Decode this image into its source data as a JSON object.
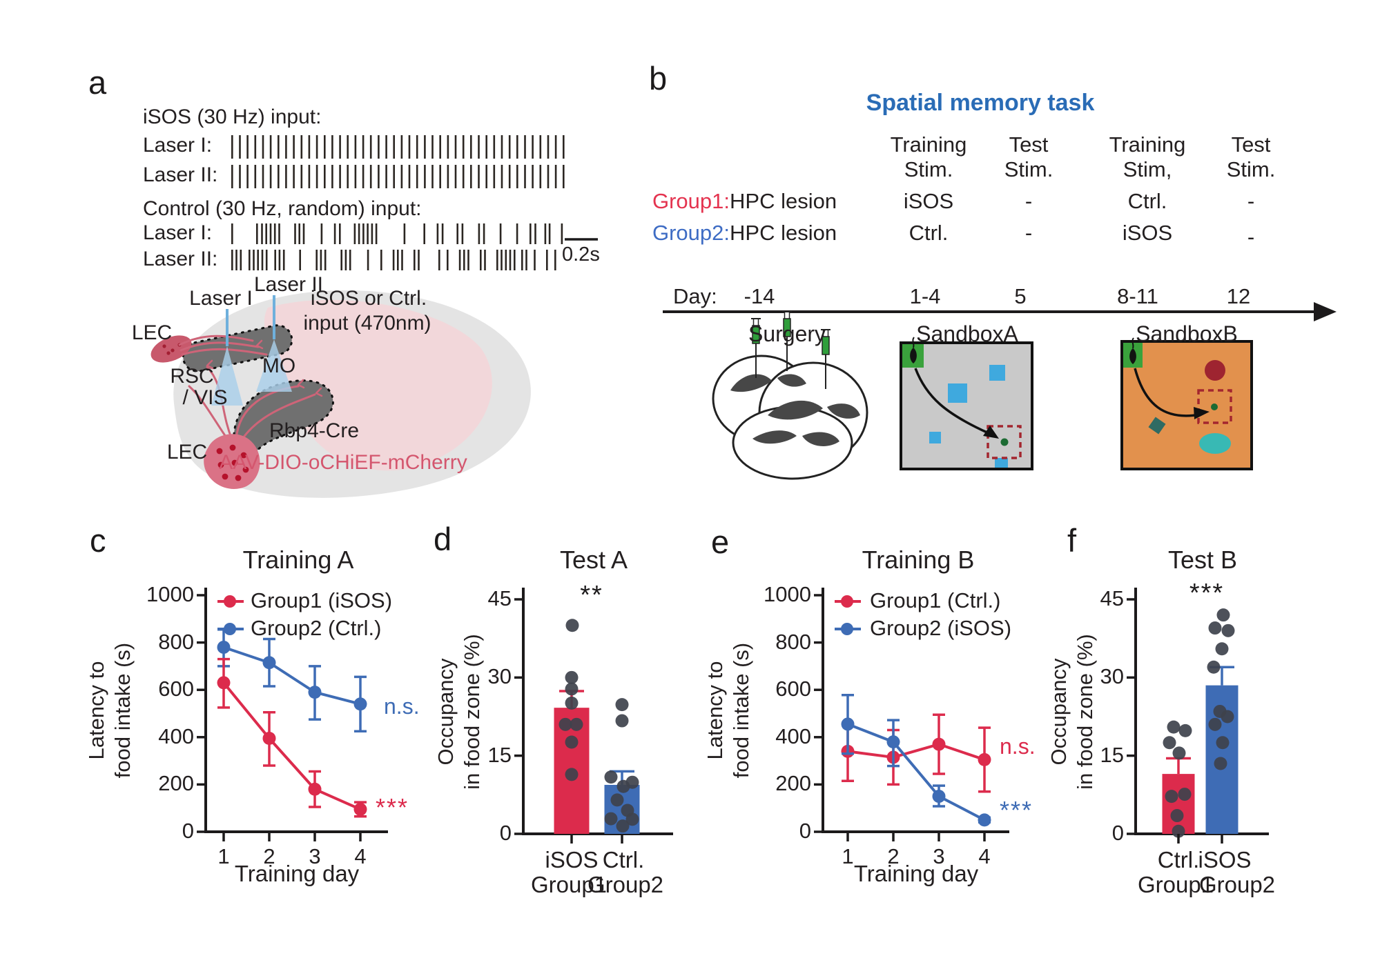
{
  "panel_a": {
    "letter": "a",
    "isos_input_label": "iSOS (30 Hz) input:",
    "control_input_label": "Control (30 Hz, random) input:",
    "laser1_label": "Laser I:",
    "laser2_label": "Laser II:",
    "scalebar_label": "0.2s",
    "isos_pulse_count": 44,
    "control_pulse_pattern_laser1": [
      0.0,
      0.075,
      0.09,
      0.103,
      0.116,
      0.129,
      0.142,
      0.19,
      0.203,
      0.216,
      0.27,
      0.31,
      0.325,
      0.37,
      0.383,
      0.396,
      0.409,
      0.422,
      0.435,
      0.52,
      0.58,
      0.62,
      0.635,
      0.68,
      0.695,
      0.745,
      0.76,
      0.81,
      0.86,
      0.9,
      0.915,
      0.945,
      0.958,
      0.995
    ],
    "control_pulse_pattern_laser2": [
      0.0,
      0.013,
      0.026,
      0.052,
      0.065,
      0.078,
      0.091,
      0.104,
      0.13,
      0.143,
      0.156,
      0.205,
      0.255,
      0.268,
      0.281,
      0.33,
      0.343,
      0.356,
      0.41,
      0.45,
      0.487,
      0.5,
      0.513,
      0.55,
      0.563,
      0.625,
      0.65,
      0.687,
      0.7,
      0.713,
      0.75,
      0.763,
      0.8,
      0.813,
      0.826,
      0.839,
      0.852,
      0.875,
      0.888,
      0.913,
      0.95,
      0.975
    ],
    "schematic_labels": {
      "laser1": "Laser I",
      "laser2": "Laser II",
      "input_line1": "iSOS or Ctrl.",
      "input_line2": "input (470nm)",
      "lec_top": "LEC",
      "rsc": "RSC",
      "vis": "/ VIS",
      "mo": "MO",
      "lec_bottom": "LEC",
      "mouse_line": "Rbp4-Cre",
      "virus": "AAV-DIO-oCHiEF-mCherry",
      "virus_color": "#D4566E"
    }
  },
  "panel_b": {
    "letter": "b",
    "title": "Spatial memory task",
    "title_color": "#2A6CB6",
    "col_headers": [
      [
        "Training",
        "Stim."
      ],
      [
        "Test",
        "Stim."
      ],
      [
        "Training",
        "Stim,"
      ],
      [
        "Test",
        "Stim."
      ]
    ],
    "rows": [
      {
        "group": "Group1:",
        "group_color": "#E4334F",
        "condition": "HPC lesion",
        "cells": [
          "iSOS",
          "-",
          "Ctrl.",
          "-"
        ]
      },
      {
        "group": "Group2:",
        "group_color": "#3E6CC4",
        "condition": "HPC lesion",
        "cells": [
          "Ctrl.",
          "-",
          "iSOS",
          "-"
        ]
      }
    ],
    "day_label": "Day:",
    "days": [
      "-14",
      "1-4",
      "5",
      "8-11",
      "12"
    ],
    "stages": [
      "Surgery",
      "SandboxA",
      "SandboxB"
    ],
    "sandboxA_colors": {
      "floor": "#C9C9C9",
      "start": "#3AA23C",
      "cue": "#3FA9DE",
      "food_zone": "#A3262F",
      "food": "#1C6B33"
    },
    "sandboxB_colors": {
      "floor": "#E2914D",
      "start": "#3AA23C",
      "cue_circle": "#9E2430",
      "cue_diamond": "#2F6B63",
      "cue_ellipse": "#38B9B4",
      "food_zone": "#A3262F",
      "food": "#1C6B33"
    }
  },
  "chart_data": [
    {
      "id": "c",
      "panel_letter": "c",
      "type": "line",
      "title": "Training A",
      "xlabel": "Training day",
      "ylabel_lines": [
        "Latency to",
        "food intake (s)"
      ],
      "x": [
        1,
        2,
        3,
        4
      ],
      "ylim": [
        0,
        1000
      ],
      "yticks": [
        0,
        200,
        400,
        600,
        800,
        1000
      ],
      "legend_position": "top-left-inside",
      "series": [
        {
          "name": "Group1 (iSOS)",
          "color": "#DC2B4C",
          "values": [
            630,
            395,
            180,
            95
          ],
          "err_low": [
            525,
            280,
            105,
            65
          ],
          "err_high": [
            730,
            505,
            255,
            125
          ],
          "sig": "***"
        },
        {
          "name": "Group2 (Ctrl.)",
          "color": "#3E6CB5",
          "values": [
            780,
            715,
            590,
            540
          ],
          "err_low": [
            700,
            615,
            475,
            425
          ],
          "err_high": [
            855,
            815,
            700,
            655
          ],
          "sig": "n.s."
        }
      ]
    },
    {
      "id": "d",
      "panel_letter": "d",
      "type": "bar",
      "title": "Test A",
      "ylabel_lines": [
        "Occupancy",
        "in food zone (%)"
      ],
      "ylim": [
        0,
        45
      ],
      "yticks": [
        0,
        15,
        30,
        45
      ],
      "sig": "**",
      "sig_color": "#1c1a1b",
      "bars": [
        {
          "label": "iSOS",
          "sublabel": "Group1",
          "color": "#DC2B4C",
          "value": 24.2,
          "err_top": 27.4,
          "points": [
            40,
            30,
            27.8,
            25.1,
            21,
            21,
            17.6,
            11.4
          ]
        },
        {
          "label": "Ctrl.",
          "sublabel": "Group2",
          "color": "#3E6CB5",
          "value": 9.4,
          "err_top": 12,
          "points": [
            24.8,
            21.7,
            10.9,
            9.9,
            9.1,
            6.5,
            4.5,
            2.9,
            2.8,
            1.5
          ]
        }
      ]
    },
    {
      "id": "e",
      "panel_letter": "e",
      "type": "line",
      "title": "Training B",
      "xlabel": "Training day",
      "ylabel_lines": [
        "Latency to",
        "food intake (s)"
      ],
      "x": [
        1,
        2,
        3,
        4
      ],
      "ylim": [
        0,
        1000
      ],
      "yticks": [
        0,
        200,
        400,
        600,
        800,
        1000
      ],
      "legend_position": "top-left-inside",
      "series": [
        {
          "name": "Group1 (Ctrl.)",
          "color": "#DC2B4C",
          "values": [
            340,
            315,
            370,
            305
          ],
          "err_low": [
            215,
            200,
            245,
            170
          ],
          "err_high": [
            460,
            430,
            495,
            440
          ],
          "sig": "n.s."
        },
        {
          "name": "Group2 (iSOS)",
          "color": "#3E6CB5",
          "values": [
            455,
            380,
            150,
            50
          ],
          "err_low": [
            330,
            278,
            108,
            40
          ],
          "err_high": [
            578,
            472,
            195,
            60
          ],
          "sig": "***"
        }
      ]
    },
    {
      "id": "f",
      "panel_letter": "f",
      "type": "bar",
      "title": "Test B",
      "ylabel_lines": [
        "Occupancy",
        "in food zone (%)"
      ],
      "ylim": [
        0,
        45
      ],
      "yticks": [
        0,
        15,
        30,
        45
      ],
      "sig": "***",
      "sig_color": "#1c1a1b",
      "bars": [
        {
          "label": "Ctrl.",
          "sublabel": "Group1",
          "color": "#DC2B4C",
          "value": 11.5,
          "err_top": 14.5,
          "points": [
            20.5,
            19.8,
            17.5,
            15.5,
            7.6,
            7.2,
            3.5,
            0.5
          ]
        },
        {
          "label": "iSOS",
          "sublabel": "Group2",
          "color": "#3E6CB5",
          "value": 28.5,
          "err_top": 32,
          "points": [
            42,
            39.5,
            39,
            35.5,
            32,
            23.5,
            22.5,
            21,
            17.5,
            13.5
          ]
        }
      ]
    }
  ]
}
